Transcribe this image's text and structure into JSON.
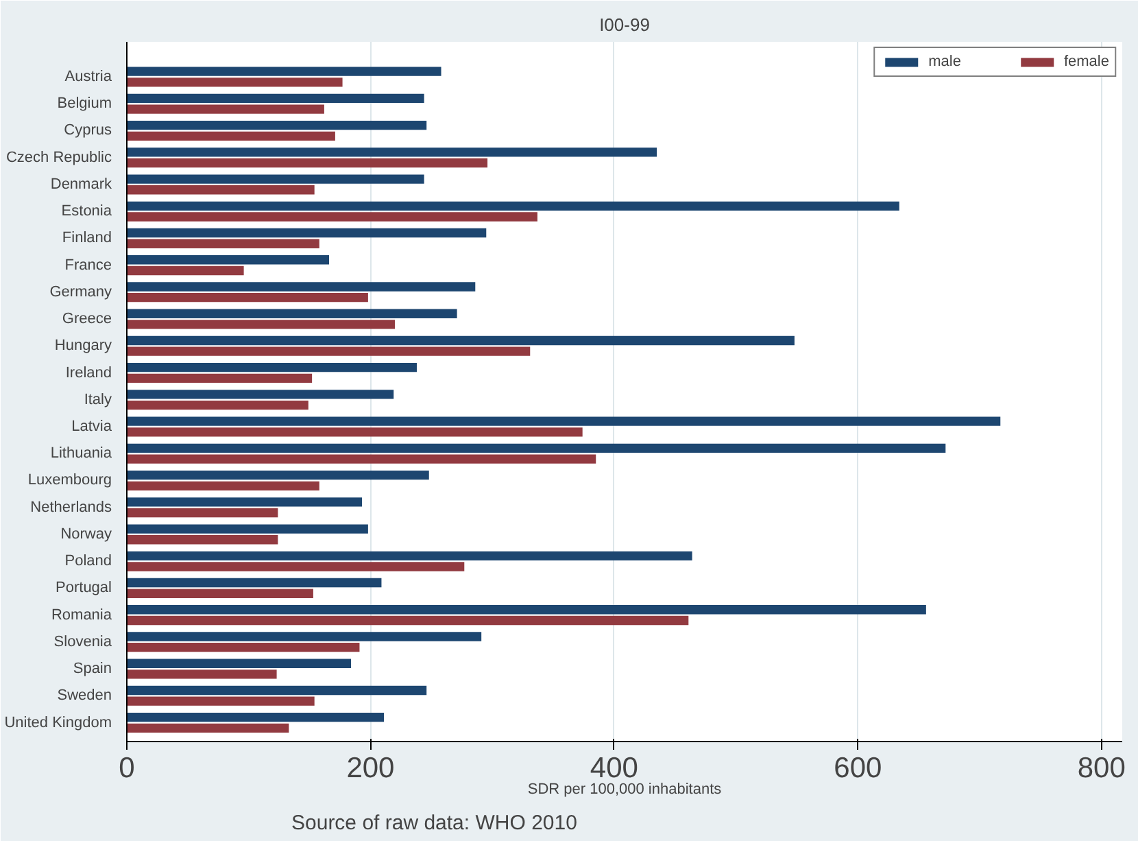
{
  "chart_data": {
    "type": "bar",
    "orientation": "horizontal",
    "title": "I00-99",
    "xlabel": "SDR per 100,000 inhabitants",
    "categories": [
      "Austria",
      "Belgium",
      "Cyprus",
      "Czech Republic",
      "Denmark",
      "Estonia",
      "Finland",
      "France",
      "Germany",
      "Greece",
      "Hungary",
      "Ireland",
      "Italy",
      "Latvia",
      "Lithuania",
      "Luxembourg",
      "Netherlands",
      "Norway",
      "Poland",
      "Portugal",
      "Romania",
      "Slovenia",
      "Spain",
      "Sweden",
      "United Kingdom"
    ],
    "series": [
      {
        "name": "male",
        "color": "#1d4670",
        "values": [
          258,
          244,
          246,
          435,
          244,
          634,
          295,
          166,
          286,
          271,
          548,
          238,
          219,
          717,
          672,
          248,
          193,
          198,
          464,
          209,
          656,
          291,
          184,
          246,
          211
        ]
      },
      {
        "name": "female",
        "color": "#923a40",
        "values": [
          177,
          162,
          171,
          296,
          154,
          337,
          158,
          96,
          198,
          220,
          331,
          152,
          149,
          374,
          385,
          158,
          124,
          124,
          277,
          153,
          461,
          191,
          123,
          154,
          133
        ]
      }
    ],
    "xlim": [
      0,
      817
    ],
    "xticks": [
      0,
      200,
      400,
      600,
      800
    ],
    "grid": "x",
    "legend": "top right",
    "annotations": [
      "Source of raw data: WHO 2010"
    ]
  }
}
